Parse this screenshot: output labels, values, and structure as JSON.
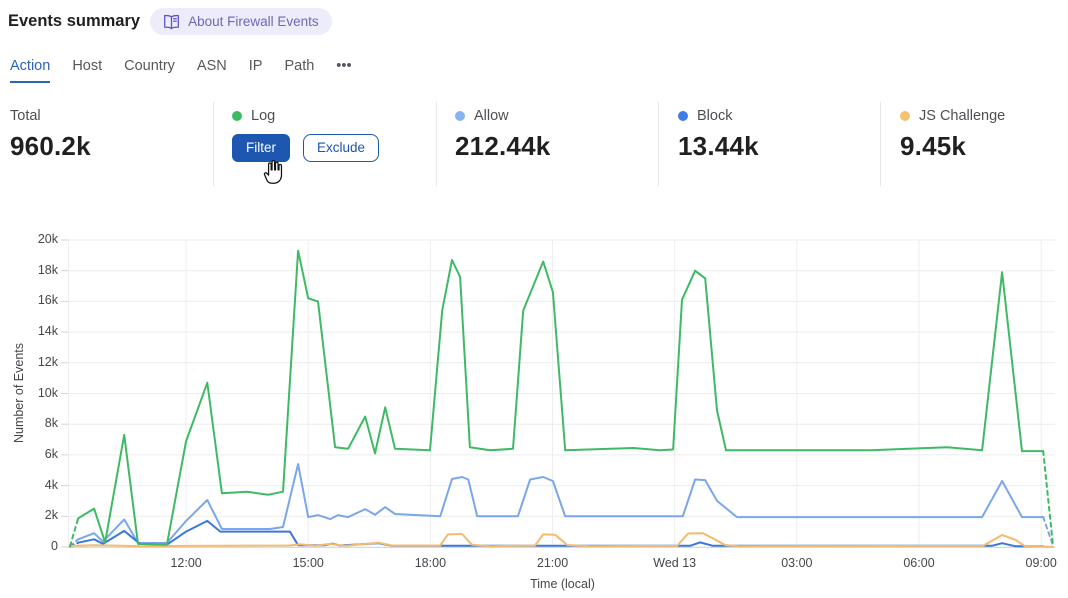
{
  "header": {
    "title": "Events summary",
    "about_badge": "About Firewall Events"
  },
  "theme": {
    "accent": "#1d57b0",
    "tab_active": "#2b63bd",
    "badge_bg": "#edecfa",
    "badge_text": "#6d68b4"
  },
  "tabs": [
    {
      "label": "Action",
      "active": true
    },
    {
      "label": "Host"
    },
    {
      "label": "Country"
    },
    {
      "label": "ASN"
    },
    {
      "label": "IP"
    },
    {
      "label": "Path"
    },
    {
      "label": "•••"
    }
  ],
  "stats": {
    "total": {
      "label": "Total",
      "value": "960.2k"
    },
    "series": [
      {
        "label": "Log",
        "color": "#3eba64",
        "hovered": true,
        "actions": [
          "Filter",
          "Exclude"
        ]
      },
      {
        "label": "Allow",
        "color": "#8ab2f0",
        "value": "212.44k"
      },
      {
        "label": "Block",
        "color": "#3d7de4",
        "value": "13.44k"
      },
      {
        "label": "JS Challenge",
        "color": "#f5c26f",
        "value": "9.45k"
      }
    ]
  },
  "chart_data": {
    "type": "line",
    "xlabel": "Time (local)",
    "ylabel": "Number of Events",
    "grid": true,
    "x_unit": "hours local, 12 = Tue 12:00, 24 = Wed 13 00:00",
    "y_unit": "thousands of events (k)",
    "xlim": [
      9.1,
      33.34
    ],
    "ylim": [
      0,
      20
    ],
    "x_ticks": [
      {
        "t": 12,
        "label": "12:00"
      },
      {
        "t": 15,
        "label": "15:00"
      },
      {
        "t": 18,
        "label": "18:00"
      },
      {
        "t": 21,
        "label": "21:00"
      },
      {
        "t": 24,
        "label": "Wed 13"
      },
      {
        "t": 27,
        "label": "03:00"
      },
      {
        "t": 30,
        "label": "06:00"
      },
      {
        "t": 33,
        "label": "09:00"
      }
    ],
    "y_ticks": [
      {
        "v": 0,
        "label": "0"
      },
      {
        "v": 2,
        "label": "2k"
      },
      {
        "v": 4,
        "label": "4k"
      },
      {
        "v": 6,
        "label": "6k"
      },
      {
        "v": 8,
        "label": "8k"
      },
      {
        "v": 10,
        "label": "10k"
      },
      {
        "v": 12,
        "label": "12k"
      },
      {
        "v": 14,
        "label": "14k"
      },
      {
        "v": 16,
        "label": "16k"
      },
      {
        "v": 18,
        "label": "18k"
      },
      {
        "v": 20,
        "label": "20k"
      }
    ],
    "series": [
      {
        "name": "Allow",
        "color": "#7aa6ec",
        "dash_in": [
          [
            9.15,
            0.05
          ],
          [
            9.35,
            0.5
          ]
        ],
        "points": [
          [
            9.35,
            0.5
          ],
          [
            9.74,
            0.9
          ],
          [
            9.96,
            0.35
          ],
          [
            10.48,
            1.8
          ],
          [
            10.82,
            0.26
          ],
          [
            11.53,
            0.26
          ],
          [
            12.0,
            1.7
          ],
          [
            12.52,
            3.06
          ],
          [
            12.88,
            1.17
          ],
          [
            14.06,
            1.17
          ],
          [
            14.38,
            1.3
          ],
          [
            14.75,
            5.4
          ],
          [
            15.0,
            1.95
          ],
          [
            15.24,
            2.08
          ],
          [
            15.54,
            1.82
          ],
          [
            15.73,
            2.08
          ],
          [
            15.98,
            1.95
          ],
          [
            16.4,
            2.47
          ],
          [
            16.64,
            2.1
          ],
          [
            16.89,
            2.6
          ],
          [
            17.13,
            2.15
          ],
          [
            18.24,
            2.0
          ],
          [
            18.53,
            4.43
          ],
          [
            18.78,
            4.56
          ],
          [
            18.93,
            4.4
          ],
          [
            19.15,
            2.0
          ],
          [
            20.15,
            2.0
          ],
          [
            20.45,
            4.4
          ],
          [
            20.77,
            4.56
          ],
          [
            21.01,
            4.3
          ],
          [
            21.31,
            2.0
          ],
          [
            24.2,
            2.0
          ],
          [
            24.5,
            4.4
          ],
          [
            24.75,
            4.36
          ],
          [
            25.04,
            3.0
          ],
          [
            25.53,
            1.95
          ],
          [
            31.55,
            1.95
          ],
          [
            32.04,
            4.3
          ],
          [
            32.53,
            1.95
          ],
          [
            33.05,
            1.95
          ]
        ],
        "dash_out": [
          [
            33.05,
            1.95
          ],
          [
            33.29,
            0.1
          ]
        ]
      },
      {
        "name": "Block",
        "color": "#3a77dc",
        "dash_in": [
          [
            9.15,
            0.03
          ],
          [
            9.35,
            0.28
          ]
        ],
        "points": [
          [
            9.35,
            0.28
          ],
          [
            9.74,
            0.5
          ],
          [
            9.96,
            0.2
          ],
          [
            10.48,
            1.05
          ],
          [
            10.87,
            0.2
          ],
          [
            11.53,
            0.15
          ],
          [
            12.0,
            1.0
          ],
          [
            12.52,
            1.7
          ],
          [
            12.84,
            1.0
          ],
          [
            14.55,
            1.0
          ],
          [
            14.75,
            0.12
          ],
          [
            15.41,
            0.12
          ],
          [
            15.59,
            0.22
          ],
          [
            15.78,
            0.1
          ],
          [
            16.72,
            0.25
          ],
          [
            17.06,
            0.08
          ],
          [
            24.38,
            0.08
          ],
          [
            24.62,
            0.3
          ],
          [
            24.94,
            0.08
          ],
          [
            31.79,
            0.08
          ],
          [
            32.04,
            0.25
          ],
          [
            32.36,
            0.05
          ],
          [
            33.05,
            0.05
          ]
        ]
      },
      {
        "name": "JS Challenge",
        "color": "#f2bb6d",
        "points": [
          [
            9.15,
            0.07
          ],
          [
            9.74,
            0.12
          ],
          [
            10.87,
            0.05
          ],
          [
            12.0,
            0.07
          ],
          [
            14.55,
            0.1
          ],
          [
            14.8,
            0.18
          ],
          [
            15.17,
            0.08
          ],
          [
            15.54,
            0.2
          ],
          [
            15.9,
            0.07
          ],
          [
            16.72,
            0.28
          ],
          [
            17.06,
            0.1
          ],
          [
            18.24,
            0.1
          ],
          [
            18.43,
            0.82
          ],
          [
            18.78,
            0.85
          ],
          [
            19.02,
            0.15
          ],
          [
            19.47,
            0.05
          ],
          [
            20.57,
            0.1
          ],
          [
            20.77,
            0.82
          ],
          [
            21.06,
            0.8
          ],
          [
            21.36,
            0.13
          ],
          [
            21.92,
            0.05
          ],
          [
            24.06,
            0.07
          ],
          [
            24.33,
            0.88
          ],
          [
            24.7,
            0.9
          ],
          [
            25.24,
            0.13
          ],
          [
            25.6,
            0.05
          ],
          [
            31.57,
            0.07
          ],
          [
            32.04,
            0.78
          ],
          [
            32.38,
            0.45
          ],
          [
            32.6,
            0.05
          ],
          [
            33.29,
            0.02
          ]
        ]
      },
      {
        "name": "Log",
        "color": "#3eba64",
        "dash_in": [
          [
            9.15,
            0.05
          ],
          [
            9.35,
            1.87
          ]
        ],
        "points": [
          [
            9.35,
            1.87
          ],
          [
            9.74,
            2.5
          ],
          [
            10.01,
            0.3
          ],
          [
            10.48,
            7.3
          ],
          [
            10.82,
            0.2
          ],
          [
            11.53,
            0.15
          ],
          [
            12.0,
            6.9
          ],
          [
            12.52,
            10.7
          ],
          [
            12.88,
            3.5
          ],
          [
            13.5,
            3.6
          ],
          [
            14.01,
            3.4
          ],
          [
            14.38,
            3.6
          ],
          [
            14.75,
            19.3
          ],
          [
            15.0,
            16.2
          ],
          [
            15.24,
            16.0
          ],
          [
            15.66,
            6.5
          ],
          [
            15.98,
            6.4
          ],
          [
            16.4,
            8.5
          ],
          [
            16.64,
            6.1
          ],
          [
            16.89,
            9.1
          ],
          [
            17.13,
            6.4
          ],
          [
            17.99,
            6.3
          ],
          [
            18.29,
            15.4
          ],
          [
            18.53,
            18.7
          ],
          [
            18.73,
            17.6
          ],
          [
            18.97,
            6.5
          ],
          [
            19.47,
            6.3
          ],
          [
            20.03,
            6.4
          ],
          [
            20.28,
            15.4
          ],
          [
            20.77,
            18.6
          ],
          [
            21.01,
            16.6
          ],
          [
            21.31,
            6.3
          ],
          [
            22.98,
            6.45
          ],
          [
            23.64,
            6.3
          ],
          [
            23.96,
            6.35
          ],
          [
            24.18,
            16.1
          ],
          [
            24.5,
            18.0
          ],
          [
            24.75,
            17.5
          ],
          [
            25.04,
            8.9
          ],
          [
            25.26,
            6.3
          ],
          [
            28.8,
            6.3
          ],
          [
            30.69,
            6.5
          ],
          [
            31.55,
            6.3
          ],
          [
            32.04,
            17.9
          ],
          [
            32.53,
            6.25
          ],
          [
            33.05,
            6.25
          ]
        ],
        "dash_out": [
          [
            33.05,
            6.25
          ],
          [
            33.29,
            0.1
          ]
        ]
      }
    ]
  }
}
